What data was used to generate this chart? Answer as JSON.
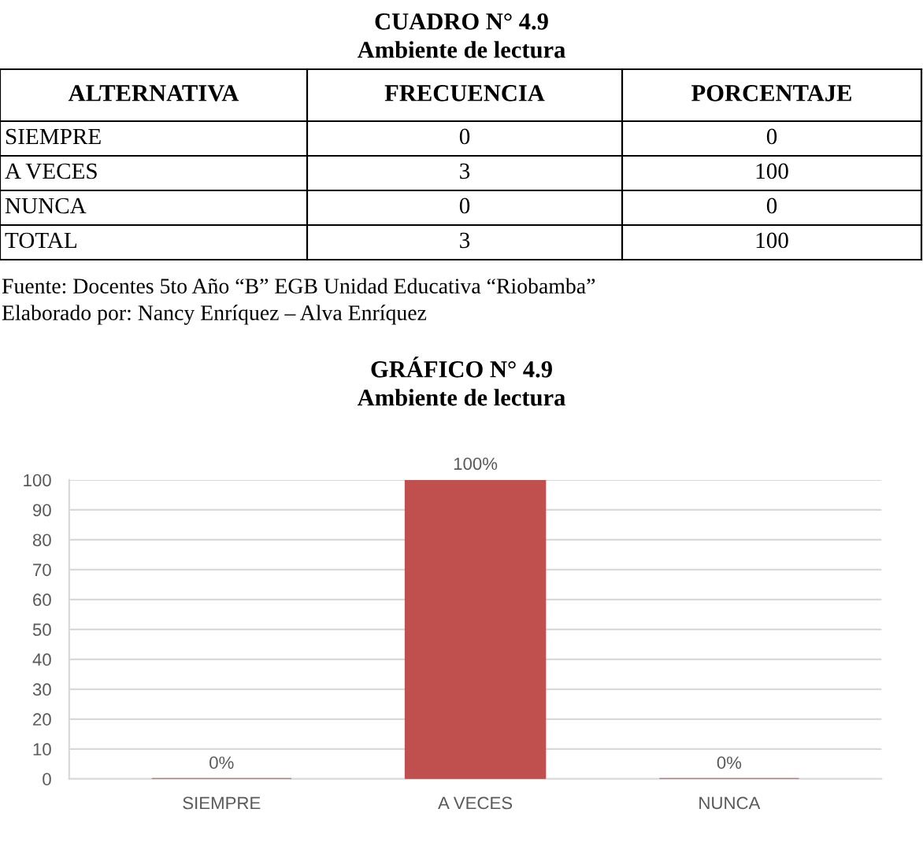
{
  "chart_data": [
    {
      "type": "other",
      "title": "CUADRO N° 4.9",
      "subtitle": "Ambiente de lectura",
      "annotations": [
        "ALTERNATIVA",
        "FRECUENCIA",
        "PORCENTAJE",
        "SIEMPRE",
        "0",
        "0",
        "A VECES",
        "3",
        "100",
        "NUNCA",
        "0",
        "0",
        "TOTAL",
        "3",
        "100",
        "Fuente: Docentes 5to Año “B” EGB Unidad Educativa “Riobamba”",
        "Elaborado por: Nancy Enríquez – Alva Enríquez"
      ]
    },
    {
      "type": "bar",
      "title": "GRÁFICO N° 4.9",
      "subtitle": "Ambiente de lectura",
      "categories": [
        "SIEMPRE",
        "A VECES",
        "NUNCA"
      ],
      "values": [
        0,
        100,
        0
      ],
      "color": "#c0504d",
      "value_labels": [
        "0%",
        "100%",
        "0%"
      ],
      "ylim": [
        0,
        100
      ],
      "yticks": [
        0,
        10,
        20,
        30,
        40,
        50,
        60,
        70,
        80,
        90,
        100
      ],
      "grid": "y"
    }
  ]
}
